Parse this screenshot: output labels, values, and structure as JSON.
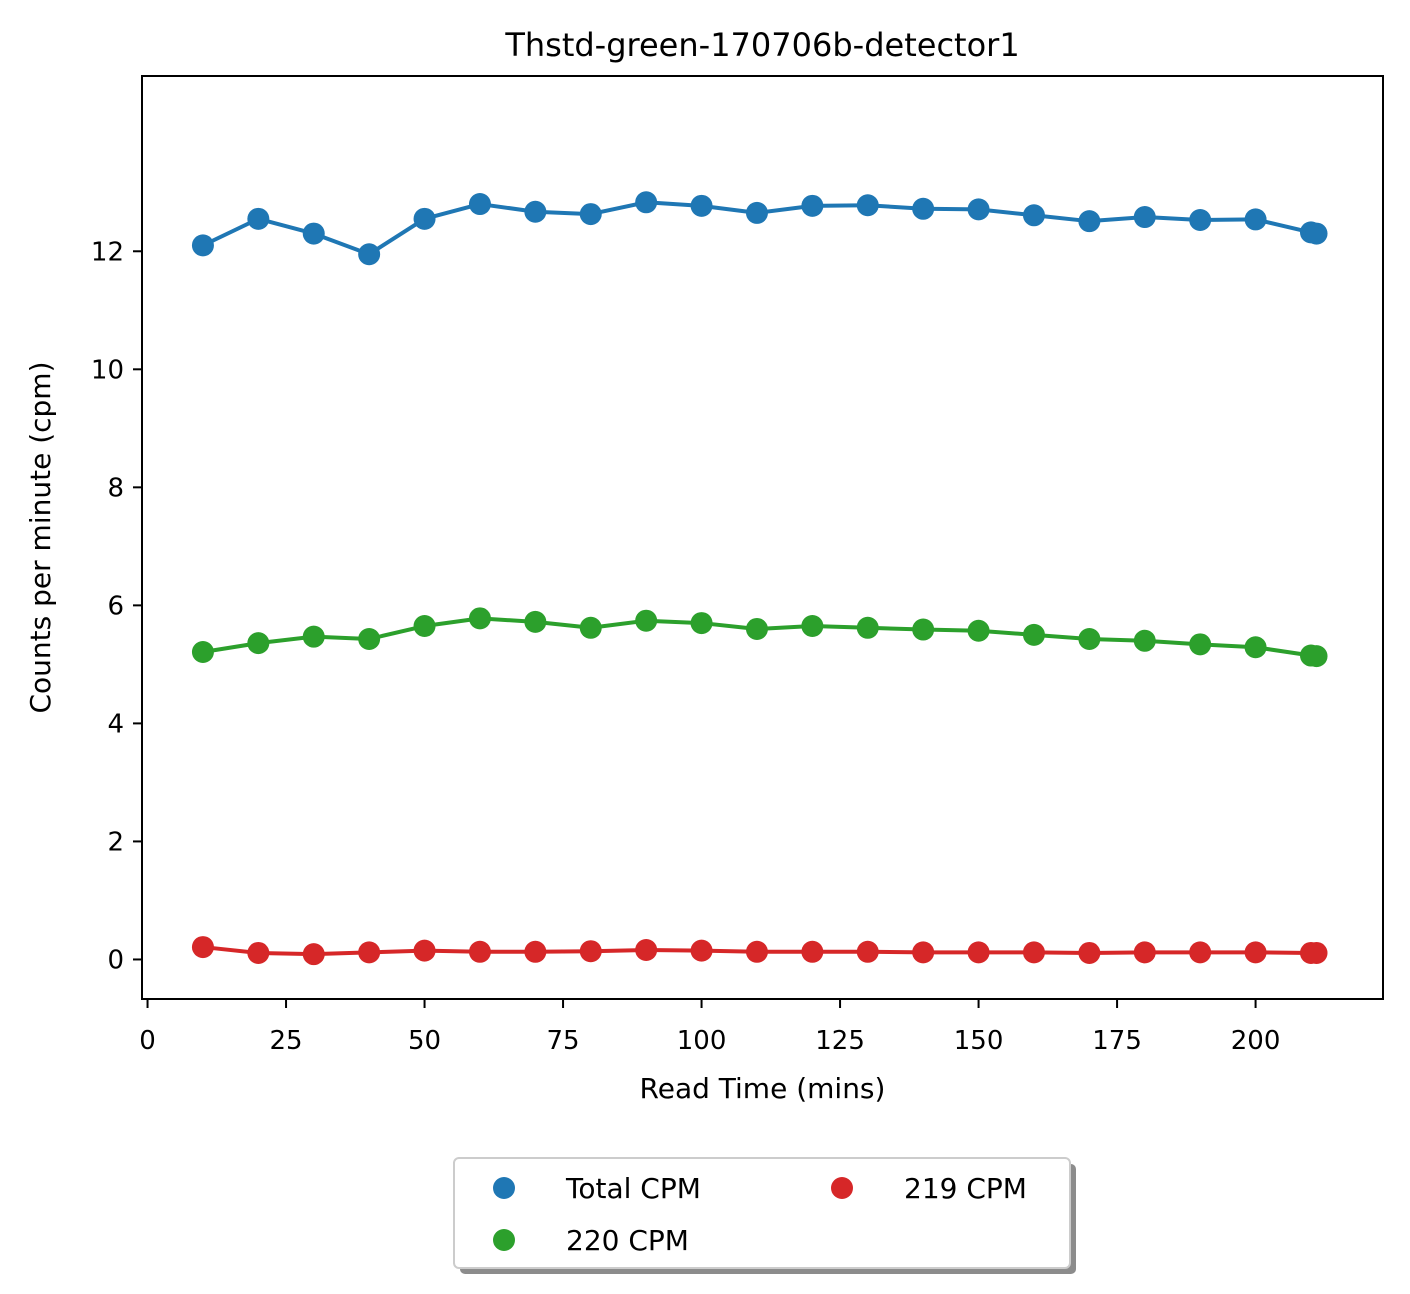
{
  "chart_data": {
    "type": "line",
    "title": "Thstd-green-170706b-detector1",
    "xlabel": "Read Time (mins)",
    "ylabel": "Counts per minute (cpm)",
    "xlim": [
      -1,
      223
    ],
    "ylim": [
      -0.67,
      14.97
    ],
    "xticks": [
      0,
      25,
      50,
      75,
      100,
      125,
      150,
      175,
      200
    ],
    "yticks": [
      0,
      2,
      4,
      6,
      8,
      10,
      12
    ],
    "grid": false,
    "legend_placement": "bottom-center",
    "x": [
      10,
      20,
      30,
      40,
      50,
      60,
      70,
      80,
      90,
      100,
      110,
      120,
      130,
      140,
      150,
      160,
      170,
      180,
      190,
      200,
      210,
      211
    ],
    "series": [
      {
        "name": "Total CPM",
        "color": "#1f77b4",
        "values": [
          12.1,
          12.55,
          12.3,
          11.95,
          12.55,
          12.8,
          12.67,
          12.63,
          12.83,
          12.77,
          12.65,
          12.77,
          12.78,
          12.72,
          12.71,
          12.61,
          12.51,
          12.58,
          12.53,
          12.54,
          12.32,
          12.3
        ]
      },
      {
        "name": "220 CPM",
        "color": "#2ca02c",
        "values": [
          5.21,
          5.36,
          5.47,
          5.43,
          5.65,
          5.78,
          5.72,
          5.62,
          5.74,
          5.7,
          5.6,
          5.65,
          5.62,
          5.59,
          5.57,
          5.5,
          5.43,
          5.4,
          5.34,
          5.29,
          5.15,
          5.14
        ]
      },
      {
        "name": "219 CPM",
        "color": "#d62728",
        "values": [
          0.21,
          0.11,
          0.09,
          0.12,
          0.15,
          0.13,
          0.13,
          0.14,
          0.16,
          0.15,
          0.13,
          0.13,
          0.13,
          0.12,
          0.12,
          0.12,
          0.11,
          0.12,
          0.12,
          0.12,
          0.11,
          0.11
        ]
      }
    ],
    "legend_order": [
      0,
      2,
      1
    ]
  }
}
